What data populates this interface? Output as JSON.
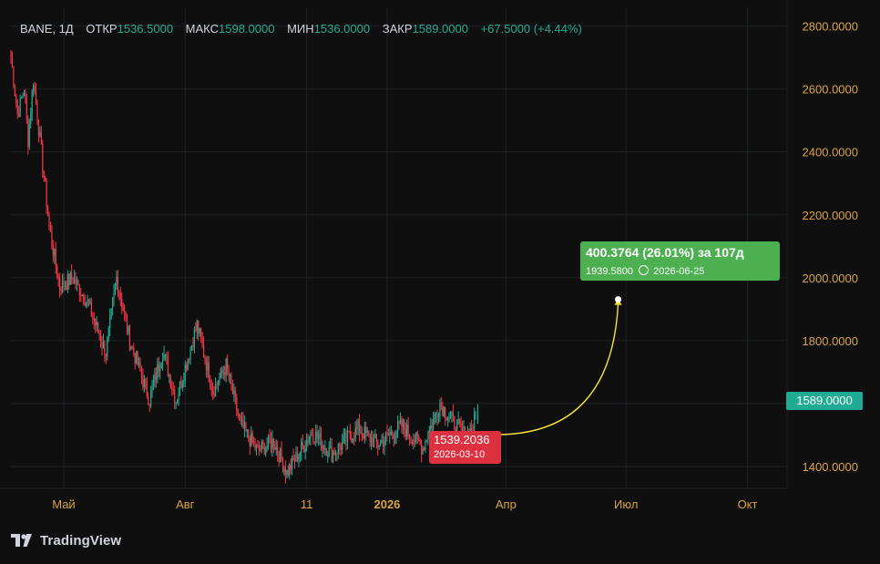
{
  "header": {
    "symbol": "BANE, 1Д",
    "open_label": "ОТКР",
    "open": "1536.5000",
    "high_label": "МАКС",
    "high": "1598.0000",
    "low_label": "МИН",
    "low": "1536.0000",
    "close_label": "ЗАКР",
    "close": "1589.0000",
    "change": "+67.5000 (+4.44%)"
  },
  "price_scale": {
    "ticks": [
      "2800.0000",
      "2600.0000",
      "2400.0000",
      "2200.0000",
      "2000.0000",
      "1800.0000",
      "1400.0000"
    ],
    "last_price": "1589.0000"
  },
  "time_scale": {
    "ticks": [
      "Май",
      "Авг",
      "11",
      "2026",
      "Апр",
      "Июл",
      "Окт"
    ]
  },
  "projection": {
    "target_label": "400.3764 (26.01%) за 107д",
    "target_price": "1939.5800",
    "target_date": "2026-06-25",
    "start_price": "1539.2036",
    "start_date": "2026-03-10"
  },
  "brand": {
    "name": "TradingView"
  },
  "colors": {
    "up": "#22ab94",
    "down": "#f23645",
    "projection_line": "#f5e13c",
    "target_bg": "#4caf50",
    "start_bg": "#dd3040"
  },
  "chart_data": {
    "type": "candlestick",
    "title": "BANE, 1Д",
    "timeframe": "1D",
    "ylim": [
      1330,
      2860
    ],
    "x_range": [
      "2025-03-22",
      "2026-10-31"
    ],
    "grid": true,
    "anchors": [
      {
        "date": "2025-03-22",
        "price": 2700
      },
      {
        "date": "2025-03-27",
        "price": 2520
      },
      {
        "date": "2025-04-01",
        "price": 2600
      },
      {
        "date": "2025-04-04",
        "price": 2440
      },
      {
        "date": "2025-04-08",
        "price": 2630
      },
      {
        "date": "2025-04-14",
        "price": 2400
      },
      {
        "date": "2025-04-20",
        "price": 2160
      },
      {
        "date": "2025-04-28",
        "price": 1970
      },
      {
        "date": "2025-05-08",
        "price": 2000
      },
      {
        "date": "2025-05-19",
        "price": 1920
      },
      {
        "date": "2025-06-02",
        "price": 1760
      },
      {
        "date": "2025-06-10",
        "price": 2000
      },
      {
        "date": "2025-06-20",
        "price": 1800
      },
      {
        "date": "2025-07-05",
        "price": 1610
      },
      {
        "date": "2025-07-15",
        "price": 1770
      },
      {
        "date": "2025-07-25",
        "price": 1610
      },
      {
        "date": "2025-08-10",
        "price": 1850
      },
      {
        "date": "2025-08-22",
        "price": 1640
      },
      {
        "date": "2025-09-01",
        "price": 1720
      },
      {
        "date": "2025-09-12",
        "price": 1530
      },
      {
        "date": "2025-09-25",
        "price": 1450
      },
      {
        "date": "2025-10-07",
        "price": 1480
      },
      {
        "date": "2025-10-17",
        "price": 1380
      },
      {
        "date": "2025-11-05",
        "price": 1510
      },
      {
        "date": "2025-11-20",
        "price": 1440
      },
      {
        "date": "2025-12-10",
        "price": 1520
      },
      {
        "date": "2025-12-25",
        "price": 1470
      },
      {
        "date": "2026-01-12",
        "price": 1530
      },
      {
        "date": "2026-01-28",
        "price": 1460
      },
      {
        "date": "2026-02-10",
        "price": 1600
      },
      {
        "date": "2026-02-20",
        "price": 1540
      },
      {
        "date": "2026-03-01",
        "price": 1500
      },
      {
        "date": "2026-03-07",
        "price": 1522
      },
      {
        "date": "2026-03-10",
        "price": 1589
      }
    ],
    "last_candle": {
      "open": 1536.5,
      "high": 1598.0,
      "low": 1536.0,
      "close": 1589.0
    },
    "projection": {
      "from": {
        "date": "2026-03-10",
        "price": 1539.2036
      },
      "to": {
        "date": "2026-06-25",
        "price": 1939.58
      },
      "days": 107,
      "change": 400.3764,
      "change_pct": 26.01
    }
  }
}
